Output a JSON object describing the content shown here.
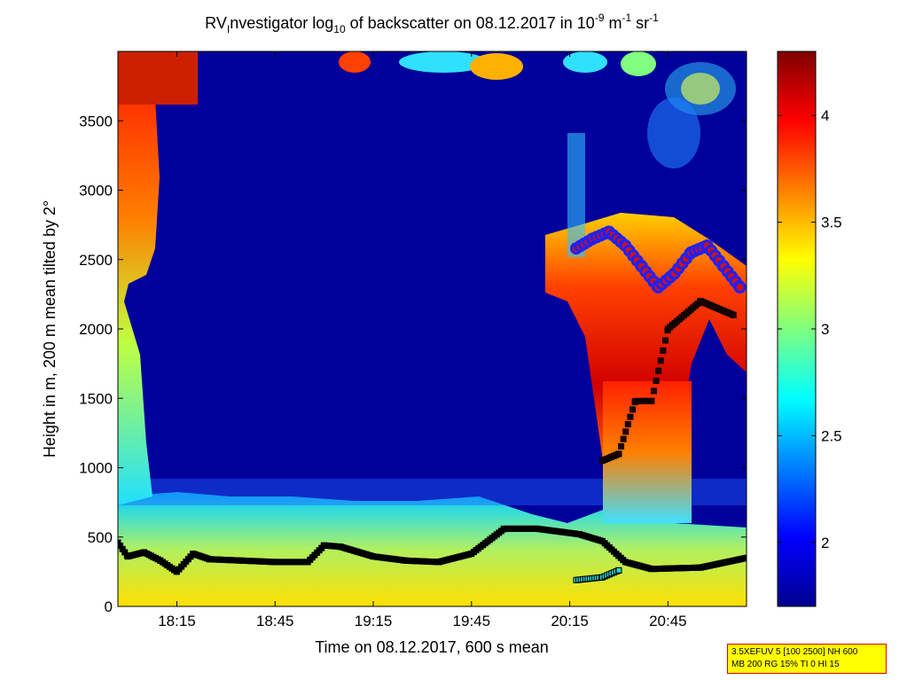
{
  "chart_data": {
    "type": "heatmap",
    "title": {
      "pre": "RV",
      "sub1": "I",
      "mid": "nvestigator log",
      "sub2": "10",
      "post": " of backscatter on 08.12.2017 in 10",
      "sup1": "-9",
      "unit1": " m",
      "sup2": "-1",
      "unit2": " sr",
      "sup3": "-1"
    },
    "xlabel": "Time on 08.12.2017, 600 s mean",
    "ylabel": "Height in m, 200 m mean tilted by 2°",
    "x_range": [
      "17:57",
      "21:09"
    ],
    "x_ticks": [
      "18:15",
      "18:45",
      "19:15",
      "19:45",
      "20:15",
      "20:45"
    ],
    "y_range": [
      0,
      4000
    ],
    "y_ticks": [
      0,
      500,
      1000,
      1500,
      2000,
      2500,
      3000,
      3500
    ],
    "colorbar": {
      "range": [
        1.7,
        4.3
      ],
      "ticks": [
        "2",
        "2.5",
        "3",
        "3.5",
        "4"
      ],
      "colormap": "jet"
    },
    "cloud_base_series": [
      {
        "time": "17:57",
        "height": 460
      },
      {
        "time": "18:00",
        "height": 360
      },
      {
        "time": "18:05",
        "height": 390
      },
      {
        "time": "18:10",
        "height": 330
      },
      {
        "time": "18:15",
        "height": 250
      },
      {
        "time": "18:20",
        "height": 380
      },
      {
        "time": "18:25",
        "height": 340
      },
      {
        "time": "18:35",
        "height": 330
      },
      {
        "time": "18:45",
        "height": 320
      },
      {
        "time": "18:55",
        "height": 320
      },
      {
        "time": "19:00",
        "height": 440
      },
      {
        "time": "19:05",
        "height": 430
      },
      {
        "time": "19:15",
        "height": 360
      },
      {
        "time": "19:25",
        "height": 330
      },
      {
        "time": "19:35",
        "height": 320
      },
      {
        "time": "19:45",
        "height": 380
      },
      {
        "time": "19:55",
        "height": 560
      },
      {
        "time": "20:05",
        "height": 560
      },
      {
        "time": "20:18",
        "height": 520
      },
      {
        "time": "20:25",
        "height": 470
      },
      {
        "time": "20:32",
        "height": 320
      },
      {
        "time": "20:40",
        "height": 270
      },
      {
        "time": "20:55",
        "height": 280
      },
      {
        "time": "21:09",
        "height": 350
      }
    ],
    "lower_layer_series": [
      {
        "time": "20:17",
        "height": 190
      },
      {
        "time": "20:25",
        "height": 210
      },
      {
        "time": "20:30",
        "height": 260
      }
    ],
    "elevated_layer_series": [
      {
        "time": "20:25",
        "height": 1050
      },
      {
        "time": "20:30",
        "height": 1100
      },
      {
        "time": "20:35",
        "height": 1480
      },
      {
        "time": "20:40",
        "height": 1480
      },
      {
        "time": "20:45",
        "height": 2000
      },
      {
        "time": "20:55",
        "height": 2200
      },
      {
        "time": "21:05",
        "height": 2100
      }
    ],
    "precip_top_series": [
      {
        "time": "20:17",
        "height": 2580
      },
      {
        "time": "20:22",
        "height": 2650
      },
      {
        "time": "20:27",
        "height": 2700
      },
      {
        "time": "20:32",
        "height": 2600
      },
      {
        "time": "20:37",
        "height": 2450
      },
      {
        "time": "20:42",
        "height": 2300
      },
      {
        "time": "20:47",
        "height": 2400
      },
      {
        "time": "20:52",
        "height": 2550
      },
      {
        "time": "20:57",
        "height": 2600
      },
      {
        "time": "21:02",
        "height": 2450
      },
      {
        "time": "21:07",
        "height": 2300
      }
    ]
  },
  "info_box": {
    "line1": "3.5XEFUV 5 [100 2500] NH 600",
    "line2": "MB 200 RG 15% TI 0 HI 15"
  },
  "colors": {
    "info_bg": "#ffff00",
    "info_border": "#e00000",
    "marker_ring": "#ffffff",
    "marker_fill": "#cc1111",
    "marker_edge": "#2020ff"
  }
}
